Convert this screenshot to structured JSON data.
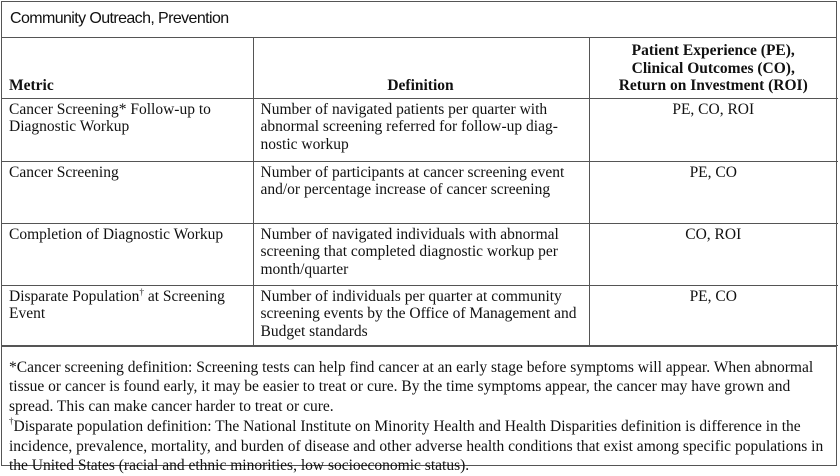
{
  "title": "Community Outreach, Prevention",
  "columns": {
    "metric": "Metric",
    "definition": "Definition",
    "outcomes": [
      "Patient Experience (PE),",
      "Clinical Outcomes (CO),",
      "Return on Investment (ROI)"
    ]
  },
  "rows": [
    {
      "metric": "Cancer Screening* Follow-up to Diagnostic Workup",
      "definition": "Number of navigated patients per quarter with abnormal screening referred for follow-up diag­nostic workup",
      "outcomes": "PE, CO, ROI"
    },
    {
      "metric": "Cancer Screening",
      "definition": "Number of participants at cancer screening event and/or percentage increase of cancer screening",
      "outcomes": "PE, CO"
    },
    {
      "metric": "Completion of Diagnostic Workup",
      "definition": "Number of navigated individuals with abnormal screening that completed diagnostic workup per month/quarter",
      "outcomes": "CO, ROI"
    },
    {
      "metric": "Disparate Population",
      "metric_mark": "†",
      "metric_suffix": " at Screening Event",
      "definition": "Number of individuals per quarter at community screening events by the Office of Management and Budget standards",
      "outcomes": "PE, CO"
    }
  ],
  "footnotes": [
    "*Cancer screening definition: Screening tests can help find cancer at an early stage before symptoms will appear. When abnormal tissue or cancer is found early, it may be easier to treat or cure. By the time symptoms appear, the cancer may have grown and spread. This can make cancer harder to treat or cure.",
    {
      "mark": "†",
      "text": "Disparate population definition: The National Institute on Minority Health and Health Disparities definition is differ­ence in the incidence, prevalence, mortality, and burden of disease and other adverse health conditions that exist among specific populations in the United States (racial and ethnic minorities, low socioeconomic status)."
    }
  ]
}
